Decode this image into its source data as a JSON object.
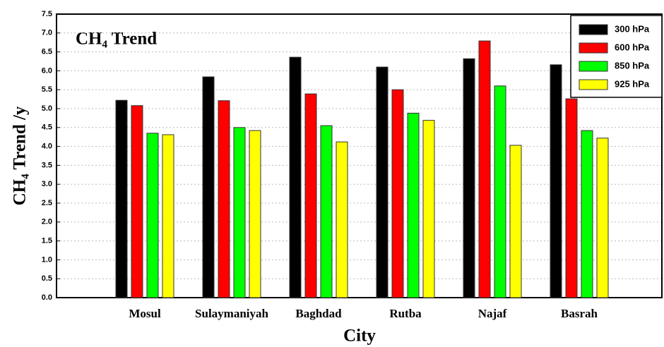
{
  "chart_data": {
    "type": "bar",
    "title": "CH₄ Trend",
    "x_label": "City",
    "y_label": "CH₄ Trend /y",
    "categories": [
      "Mosul",
      "Sulaymaniyah",
      "Baghdad",
      "Rutba",
      "Najaf",
      "Basrah"
    ],
    "series": [
      {
        "name": "300 hPa",
        "color": "#000000",
        "values": [
          5.22,
          5.84,
          6.36,
          6.1,
          6.32,
          6.16
        ]
      },
      {
        "name": "600 hPa",
        "color": "#ff0000",
        "values": [
          5.08,
          5.21,
          5.39,
          5.5,
          6.79,
          5.26
        ]
      },
      {
        "name": "850 hPa",
        "color": "#00ff00",
        "values": [
          4.35,
          4.5,
          4.55,
          4.88,
          5.6,
          4.42
        ]
      },
      {
        "name": "925 hPa",
        "color": "#ffff00",
        "values": [
          4.31,
          4.42,
          4.12,
          4.69,
          4.03,
          4.22
        ]
      }
    ],
    "ylim": [
      0,
      7.5
    ],
    "yticks": [
      {
        "value": 0,
        "label": "0.0"
      },
      0.5,
      {
        "value": 1,
        "label": "1.0"
      },
      1.5,
      {
        "value": 2,
        "label": "2.0"
      },
      2.5,
      {
        "value": 3,
        "label": "3.0"
      },
      3.5,
      {
        "value": 4,
        "label": "4.0"
      },
      4.5,
      {
        "value": 5,
        "label": "5.0"
      },
      5.5,
      {
        "value": 6,
        "label": "6.0"
      },
      6.5,
      {
        "value": 7,
        "label": "7.0"
      },
      7.5
    ],
    "grid": true,
    "legend": "upper right"
  }
}
